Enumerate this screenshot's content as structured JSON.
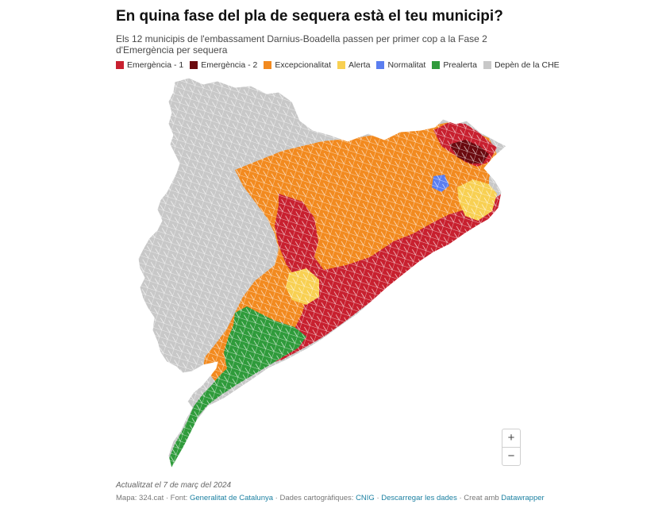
{
  "header": {
    "title": "En quina fase del pla de sequera està el teu municipi?",
    "subtitle": "Els 12 municipis de l'embassament Darnius-Boadella passen per primer cop a la Fase 2 d'Emergència per sequera"
  },
  "legend": [
    {
      "label": "Emergència - 1",
      "color": "#c8202f"
    },
    {
      "label": "Emergència - 2",
      "color": "#6b0a0f"
    },
    {
      "label": "Excepcionalitat",
      "color": "#f28a1f"
    },
    {
      "label": "Alerta",
      "color": "#f8d052"
    },
    {
      "label": "Normalitat",
      "color": "#5b7ef0"
    },
    {
      "label": "Prealerta",
      "color": "#2f9b3b"
    },
    {
      "label": "Depèn de la CHE",
      "color": "#c8c8c8"
    }
  ],
  "zoom": {
    "in_label": "+",
    "out_label": "−"
  },
  "footer": {
    "updated": "Actualitzat el 7 de març del 2024",
    "map_prefix": "Mapa: 324.cat · Font: ",
    "source_link": "Generalitat de Catalunya",
    "carto_prefix": " · Dades cartogràfiques: ",
    "carto_link": "CNIG",
    "sep": " · ",
    "download_link": "Descarregar les dades",
    "created_prefix": " · Creat amb ",
    "created_link": "Datawrapper"
  }
}
